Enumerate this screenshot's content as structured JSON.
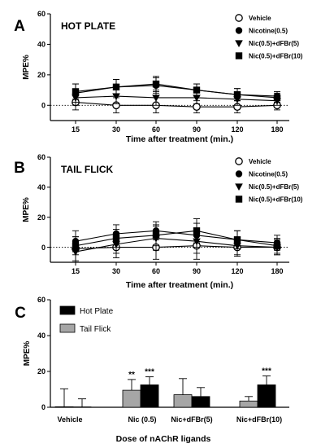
{
  "chart_data": [
    {
      "type": "line",
      "letter": "A",
      "title": "HOT PLATE",
      "xlabel": "Time after treatment (min.)",
      "ylabel": "MPE%",
      "categories": [
        "15",
        "30",
        "60",
        "90",
        "120",
        "180"
      ],
      "ylim": [
        -10,
        60
      ],
      "yticks": [
        0,
        20,
        40,
        60
      ],
      "grid": false,
      "legend": "top-right",
      "series": [
        {
          "name": "Vehicle",
          "marker": "open-circle",
          "values": [
            2,
            0,
            0,
            -1,
            -1,
            0
          ],
          "errors": [
            5,
            5,
            5,
            4,
            4,
            3
          ]
        },
        {
          "name": "Nicotine(0.5)",
          "marker": "filled-circle",
          "values": [
            8,
            12,
            13,
            10,
            7,
            6
          ],
          "errors": [
            6,
            5,
            5,
            4,
            4,
            3
          ]
        },
        {
          "name": "Nic(0.5)+dFBr(5)",
          "marker": "triangle-down",
          "values": [
            5,
            6,
            5,
            5,
            4,
            3
          ],
          "errors": [
            5,
            5,
            5,
            4,
            4,
            3
          ]
        },
        {
          "name": "Nic(0.5)+dFBr(10)",
          "marker": "square",
          "values": [
            9,
            12,
            14,
            10,
            7,
            5
          ],
          "errors": [
            5,
            5,
            5,
            4,
            4,
            3
          ]
        }
      ]
    },
    {
      "type": "line",
      "letter": "B",
      "title": "TAIL FLICK",
      "xlabel": "Time after treatment (min.)",
      "ylabel": "MPE%",
      "categories": [
        "15",
        "30",
        "60",
        "90",
        "120",
        "180"
      ],
      "ylim": [
        -10,
        60
      ],
      "yticks": [
        0,
        20,
        40,
        60
      ],
      "grid": false,
      "legend": "top-right",
      "series": [
        {
          "name": "Vehicle",
          "marker": "open-circle",
          "values": [
            -1,
            0,
            0,
            1,
            0,
            0
          ],
          "errors": [
            8,
            7,
            8,
            9,
            6,
            5
          ]
        },
        {
          "name": "Nicotine(0.5)",
          "marker": "filled-circle",
          "values": [
            4,
            9,
            11,
            8,
            5,
            3
          ],
          "errors": [
            7,
            6,
            6,
            8,
            6,
            5
          ]
        },
        {
          "name": "Nic(0.5)+dFBr(5)",
          "marker": "triangle-down",
          "values": [
            -3,
            2,
            6,
            4,
            1,
            0
          ],
          "errors": [
            7,
            6,
            8,
            8,
            6,
            5
          ]
        },
        {
          "name": "Nic(0.5)+dFBr(10)",
          "marker": "square",
          "values": [
            1,
            6,
            8,
            11,
            5,
            1
          ],
          "errors": [
            6,
            6,
            7,
            8,
            6,
            5
          ]
        }
      ]
    },
    {
      "type": "bar",
      "letter": "C",
      "title": "",
      "xlabel": "Dose of nAChR ligands",
      "ylabel": "MPE%",
      "categories": [
        "Vehicle",
        "Nic (0.5)",
        "Nic+dFBr(5)",
        "Nic+dFBr(10)"
      ],
      "ylim": [
        0,
        60
      ],
      "yticks": [
        0,
        20,
        40,
        60
      ],
      "grid": false,
      "legend": "top-left",
      "series": [
        {
          "name": "Tail Flick",
          "color": "#a6a6a6",
          "values": [
            0.3,
            9.5,
            7,
            3.5
          ],
          "errors": [
            10,
            6,
            9,
            2.5
          ],
          "marks": [
            "",
            "**",
            "",
            ""
          ]
        },
        {
          "name": "Hot Plate",
          "color": "#000000",
          "values": [
            0.2,
            12.5,
            6,
            12.5
          ],
          "errors": [
            4.5,
            4.5,
            5,
            5
          ],
          "marks": [
            "",
            "***",
            "",
            "***"
          ]
        }
      ],
      "legend_order": [
        "Hot Plate",
        "Tail Flick"
      ]
    }
  ]
}
